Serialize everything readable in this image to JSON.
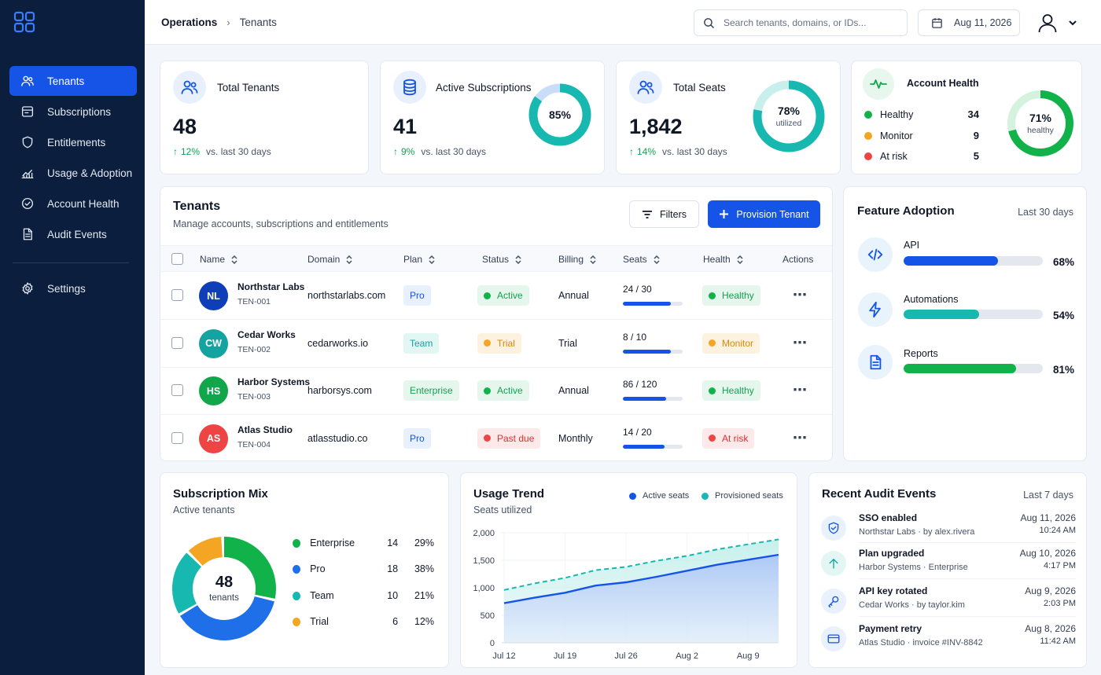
{
  "colors": {
    "primary": "#1554e6",
    "teal": "#16b8b0",
    "green": "#12b24a",
    "orange": "#f5a524",
    "red": "#ef4444",
    "sidebar": "#0b1e3d"
  },
  "sidebar": {
    "items": [
      {
        "label": "Tenants",
        "icon": "users-icon"
      },
      {
        "label": "Subscriptions",
        "icon": "card-stack-icon"
      },
      {
        "label": "Entitlements",
        "icon": "shield-icon"
      },
      {
        "label": "Usage & Adoption",
        "icon": "chart-icon"
      },
      {
        "label": "Account Health",
        "icon": "check-circle-icon"
      },
      {
        "label": "Audit Events",
        "icon": "document-icon"
      }
    ],
    "settings": "Settings"
  },
  "header": {
    "breadcrumb": [
      "Operations",
      "Tenants"
    ],
    "search_placeholder": "Search tenants, domains, or IDs...",
    "date": "Aug 11, 2026"
  },
  "stats": {
    "total_tenants": {
      "label": "Total Tenants",
      "value": "48",
      "delta": "12%",
      "delta_text": "vs. last 30 days"
    },
    "active_subscriptions": {
      "label": "Active Subscriptions",
      "value": "41",
      "delta": "9%",
      "delta_text": "vs. last 30 days",
      "ring_label": "85%",
      "ring_fraction": 0.85
    },
    "total_seats": {
      "label": "Total Seats",
      "value": "1,842",
      "delta": "14%",
      "delta_text": "vs. last 30 days",
      "ring_label": "78%",
      "ring_sub": "utilized",
      "ring_fraction": 0.78
    },
    "account_health": {
      "label": "Account Health",
      "rows": [
        {
          "label": "Healthy",
          "count": "34",
          "color": "#12b24a"
        },
        {
          "label": "Monitor",
          "count": "9",
          "color": "#f5a524"
        },
        {
          "label": "At risk",
          "count": "5",
          "color": "#ef4444"
        }
      ],
      "ring_label": "71%",
      "ring_sub": "healthy",
      "ring_fraction": 0.71
    }
  },
  "tenants": {
    "title": "Tenants",
    "subtitle": "Manage accounts, subscriptions and entitlements",
    "filters_label": "Filters",
    "provision_label": "Provision Tenant",
    "columns": [
      "Name",
      "Domain",
      "Plan",
      "Status",
      "Billing",
      "Seats",
      "Health",
      "Actions"
    ],
    "rows": [
      {
        "initials": "NL",
        "avatar_color": "#0f3fb8",
        "name": "Northstar Labs",
        "id": "TEN-001",
        "domain": "northstarlabs.com",
        "plan": "Pro",
        "plan_style": "blue",
        "status": "Active",
        "status_style": "green",
        "billing": "Annual",
        "seats": "24 / 30",
        "seats_fraction": 0.8,
        "health": "Healthy",
        "health_style": "green"
      },
      {
        "initials": "CW",
        "avatar_color": "#14a3a0",
        "name": "Cedar Works",
        "id": "TEN-002",
        "domain": "cedarworks.io",
        "plan": "Team",
        "plan_style": "teal",
        "status": "Trial",
        "status_style": "orange",
        "billing": "Trial",
        "seats": "8 / 10",
        "seats_fraction": 0.8,
        "health": "Monitor",
        "health_style": "orange"
      },
      {
        "initials": "HS",
        "avatar_color": "#12a64a",
        "name": "Harbor Systems",
        "id": "TEN-003",
        "domain": "harborsys.com",
        "plan": "Enterprise",
        "plan_style": "green",
        "status": "Active",
        "status_style": "green",
        "billing": "Annual",
        "seats": "86 / 120",
        "seats_fraction": 0.72,
        "health": "Healthy",
        "health_style": "green"
      },
      {
        "initials": "AS",
        "avatar_color": "#ef4444",
        "name": "Atlas Studio",
        "id": "TEN-004",
        "domain": "atlasstudio.co",
        "plan": "Pro",
        "plan_style": "blue",
        "status": "Past due",
        "status_style": "red",
        "billing": "Monthly",
        "seats": "14 / 20",
        "seats_fraction": 0.7,
        "health": "At risk",
        "health_style": "red"
      }
    ]
  },
  "feature_adoption": {
    "title": "Feature Adoption",
    "period": "Last 30 days",
    "items": [
      {
        "name": "API",
        "pct": "68%",
        "fraction": 0.68,
        "color": "#1554e6",
        "icon": "code-icon"
      },
      {
        "name": "Automations",
        "pct": "54%",
        "fraction": 0.54,
        "color": "#16b8b0",
        "icon": "lightning-icon"
      },
      {
        "name": "Reports",
        "pct": "81%",
        "fraction": 0.81,
        "color": "#12b24a",
        "icon": "report-icon"
      }
    ]
  },
  "subscription_mix": {
    "title": "Subscription Mix",
    "subtitle": "Active tenants",
    "center_value": "48",
    "center_label": "tenants",
    "items": [
      {
        "label": "Enterprise",
        "count": "14",
        "pct": "29%",
        "color": "#12b24a",
        "fraction": 0.29
      },
      {
        "label": "Pro",
        "count": "18",
        "pct": "38%",
        "color": "#1f6fe8",
        "fraction": 0.38
      },
      {
        "label": "Team",
        "count": "10",
        "pct": "21%",
        "color": "#16b8b0",
        "fraction": 0.21
      },
      {
        "label": "Trial",
        "count": "6",
        "pct": "12%",
        "color": "#f5a524",
        "fraction": 0.12
      }
    ]
  },
  "usage_trend": {
    "title": "Usage Trend",
    "subtitle": "Seats utilized",
    "legend": [
      {
        "name": "Active seats",
        "color": "#1554e6"
      },
      {
        "name": "Provisioned seats",
        "color": "#16b8b0"
      }
    ],
    "y_ticks": [
      "0",
      "500",
      "1,000",
      "1,500",
      "2,000"
    ],
    "x_ticks": [
      "Jul 12",
      "Jul 19",
      "Jul 26",
      "Aug 2",
      "Aug 9"
    ]
  },
  "chart_data": {
    "type": "area",
    "title": "Usage Trend",
    "subtitle": "Seats utilized",
    "x": [
      "Jul 12",
      "Jul 15",
      "Jul 19",
      "Jul 23",
      "Jul 26",
      "Jul 29",
      "Aug 2",
      "Aug 6",
      "Aug 9",
      "Aug 11"
    ],
    "series": [
      {
        "name": "Active seats",
        "values": [
          720,
          820,
          910,
          1040,
          1100,
          1200,
          1310,
          1420,
          1510,
          1600
        ]
      },
      {
        "name": "Provisioned seats",
        "values": [
          960,
          1080,
          1180,
          1320,
          1380,
          1490,
          1580,
          1700,
          1790,
          1880
        ]
      }
    ],
    "ylim": [
      0,
      2000
    ],
    "y_ticks": [
      0,
      500,
      1000,
      1500,
      2000
    ],
    "x_ticks": [
      "Jul 12",
      "Jul 19",
      "Jul 26",
      "Aug 2",
      "Aug 9"
    ],
    "grid": true,
    "legend_position": "top-right"
  },
  "audit_events": {
    "title": "Recent Audit Events",
    "period": "Last 7 days",
    "items": [
      {
        "title": "SSO enabled",
        "sub": "Northstar Labs  ·  by alex.rivera",
        "date": "Aug 11, 2026",
        "time": "10:24 AM",
        "icon": "shield-check-icon"
      },
      {
        "title": "Plan upgraded",
        "sub": "Harbor Systems  ·  Enterprise",
        "date": "Aug 10, 2026",
        "time": "4:17 PM",
        "icon": "arrow-up-icon"
      },
      {
        "title": "API key rotated",
        "sub": "Cedar Works  ·  by taylor.kim",
        "date": "Aug 9, 2026",
        "time": "2:03 PM",
        "icon": "key-icon"
      },
      {
        "title": "Payment retry",
        "sub": "Atlas Studio  ·  invoice #INV-8842",
        "date": "Aug 8, 2026",
        "time": "11:42 AM",
        "icon": "credit-card-icon"
      }
    ]
  }
}
